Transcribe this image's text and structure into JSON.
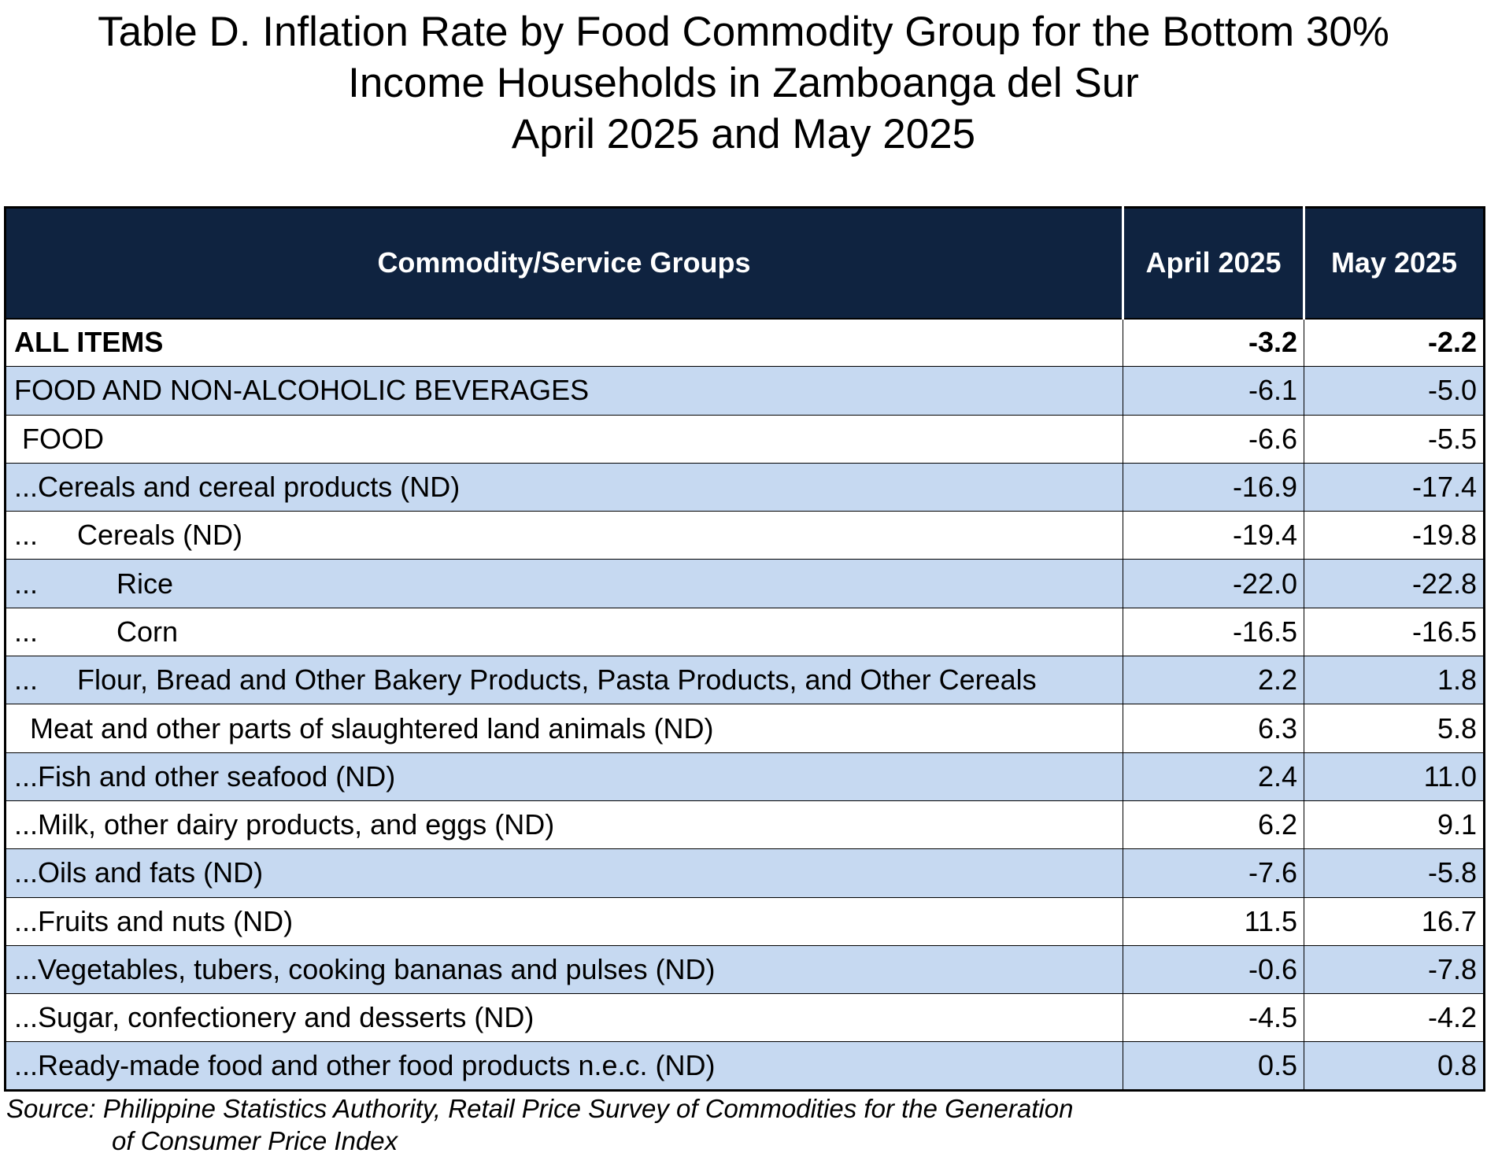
{
  "title": {
    "line1": "Table D. Inflation Rate by Food Commodity Group for the Bottom 30%",
    "line2": "Income Households in Zamboanga del Sur",
    "line3": "April 2025 and May 2025"
  },
  "table": {
    "headers": [
      "Commodity/Service Groups",
      "April 2025",
      "May 2025"
    ],
    "rows": [
      {
        "label": "ALL ITEMS",
        "april": "-3.2",
        "may": "-2.2"
      },
      {
        "label": "FOOD AND NON-ALCOHOLIC BEVERAGES",
        "april": "-6.1",
        "may": "-5.0"
      },
      {
        "label": " FOOD",
        "april": "-6.6",
        "may": "-5.5"
      },
      {
        "label": "...Cereals and cereal products (ND)",
        "april": "-16.9",
        "may": "-17.4"
      },
      {
        "label": "...     Cereals (ND)",
        "april": "-19.4",
        "may": "-19.8"
      },
      {
        "label": "...          Rice",
        "april": "-22.0",
        "may": "-22.8"
      },
      {
        "label": "...          Corn",
        "april": "-16.5",
        "may": "-16.5"
      },
      {
        "label": "...     Flour, Bread and Other Bakery Products, Pasta Products, and Other Cereals",
        "april": "2.2",
        "may": "1.8"
      },
      {
        "label": "  Meat and other parts of slaughtered land animals (ND)",
        "april": "6.3",
        "may": "5.8"
      },
      {
        "label": "...Fish and other seafood (ND)",
        "april": "2.4",
        "may": "11.0"
      },
      {
        "label": "...Milk, other dairy products, and eggs (ND)",
        "april": "6.2",
        "may": "9.1"
      },
      {
        "label": "...Oils and fats (ND)",
        "april": "-7.6",
        "may": "-5.8"
      },
      {
        "label": "...Fruits and nuts (ND)",
        "april": "11.5",
        "may": "16.7"
      },
      {
        "label": "...Vegetables, tubers, cooking bananas and pulses (ND)",
        "april": "-0.6",
        "may": "-7.8"
      },
      {
        "label": "...Sugar, confectionery and desserts (ND)",
        "april": "-4.5",
        "may": "-4.2"
      },
      {
        "label": "...Ready-made food and other food products n.e.c. (ND)",
        "april": "0.5",
        "may": "0.8"
      }
    ]
  },
  "source": {
    "line1": "Source: Philippine Statistics Authority, Retail Price Survey of Commodities for the Generation",
    "line2": "of Consumer Price Index"
  },
  "colors": {
    "header_bg": "#0f2340",
    "shade_bg": "#c6d9f1"
  }
}
